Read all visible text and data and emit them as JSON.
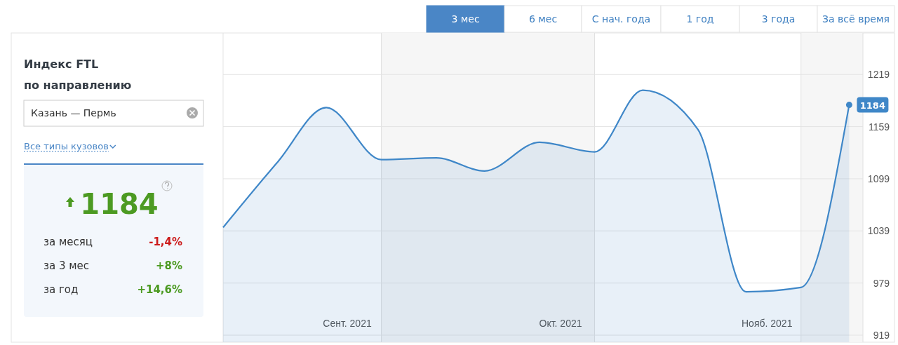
{
  "chart_data": {
    "type": "area",
    "title": "Индекс FTL",
    "subtitle": "по направлению",
    "x": [
      "2021-09-08",
      "2021-09-16",
      "2021-09-23",
      "2021-10-01",
      "2021-10-09",
      "2021-10-16",
      "2021-10-24",
      "2021-11-01",
      "2021-11-08",
      "2021-11-16",
      "2021-11-23",
      "2021-12-01",
      "2021-12-08"
    ],
    "series": [
      {
        "color": "#3f87c8",
        "values": [
          1043,
          1119,
          1181,
          1121,
          1123,
          1108,
          1141,
          1130,
          1201,
          1156,
          969,
          974,
          1184
        ]
      }
    ],
    "xlim": [
      "2021-09-08",
      "2021-12-10"
    ],
    "xticks": [
      {
        "value": "2021-09-26",
        "label": "Сент. 2021"
      },
      {
        "value": "2021-10-27",
        "label": "Окт. 2021"
      },
      {
        "value": "2021-11-26",
        "label": "Нояб. 2021"
      }
    ],
    "ylim": [
      919,
      1266
    ],
    "yticks": [
      919,
      979,
      1039,
      1099,
      1159,
      1219
    ],
    "grid": "y",
    "marker": "none",
    "line_style": "solid",
    "bands": [
      {
        "axis": "x",
        "from": "2021-10-01",
        "to": "2021-11-01",
        "color": "#f6f6f6"
      },
      {
        "axis": "x",
        "from": "2021-12-01",
        "to": "2021-12-10",
        "color": "#f6f6f6"
      }
    ],
    "annotations": [
      "3 мес",
      "6 мес",
      "С нач. года",
      "1 год",
      "3 года",
      "За всё время",
      "Казань — Пермь",
      "Все типы кузовов",
      "1184",
      "за месяц",
      "-1,4%",
      "за 3 мес",
      "+8%",
      "за год",
      "+14,6%",
      {
        "text": "1184",
        "x": "2021-12-08",
        "y": 1184
      }
    ]
  }
}
